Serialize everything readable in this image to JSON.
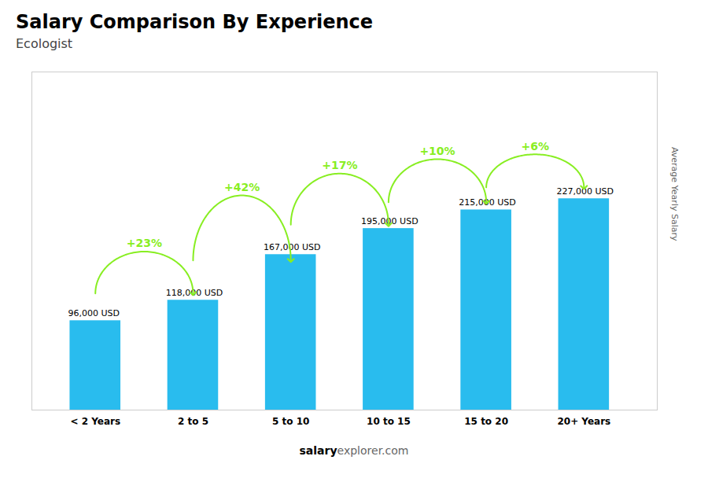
{
  "chart_data": {
    "type": "bar",
    "title": "Salary Comparison By Experience",
    "subtitle": "Ecologist",
    "ylabel": "Average Yearly Salary",
    "categories": [
      "< 2 Years",
      "2 to 5",
      "5 to 10",
      "10 to 15",
      "15 to 20",
      "20+ Years"
    ],
    "values": [
      96000,
      118000,
      167000,
      195000,
      215000,
      227000
    ],
    "value_labels": [
      "96,000 USD",
      "118,000 USD",
      "167,000 USD",
      "195,000 USD",
      "215,000 USD",
      "227,000 USD"
    ],
    "data_labels": true,
    "color": "#29bcee",
    "ylim": [
      0,
      363200
    ],
    "yticks": [],
    "tick_labels": "x",
    "grid": false,
    "annotations": [
      {
        "text": "+23%",
        "from": "< 2 Years",
        "to": "2 to 5",
        "color": "#88ee22"
      },
      {
        "text": "+42%",
        "from": "2 to 5",
        "to": "5 to 10",
        "color": "#88ee22"
      },
      {
        "text": "+17%",
        "from": "5 to 10",
        "to": "10 to 15",
        "color": "#88ee22"
      },
      {
        "text": "+10%",
        "from": "10 to 15",
        "to": "15 to 20",
        "color": "#88ee22"
      },
      {
        "text": "+6%",
        "from": "15 to 20",
        "to": "20+ Years",
        "color": "#88ee22"
      }
    ],
    "caption": [
      "salary",
      "explorer.com"
    ]
  }
}
